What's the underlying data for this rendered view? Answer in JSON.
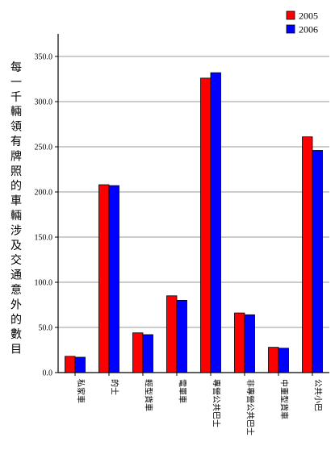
{
  "chart_data": {
    "type": "bar",
    "ylabel": "每一千輛領有牌照的車輛涉及交通意外的數目",
    "ylim": [
      0,
      375
    ],
    "yticks": [
      "0.0",
      "50.0",
      "100.0",
      "150.0",
      "200.0",
      "250.0",
      "300.0",
      "350.0"
    ],
    "categories": [
      "私家車",
      "的士",
      "輕型貨車",
      "電單車",
      "專營公共巴士",
      "非專營公共巴士",
      "中重型貨車",
      "公共小巴"
    ],
    "series": [
      {
        "name": "2005",
        "color": "#ff0000",
        "values": [
          18,
          208,
          44,
          85,
          326,
          66,
          28,
          261
        ]
      },
      {
        "name": "2006",
        "color": "#0000ff",
        "values": [
          17,
          207,
          42,
          80,
          332,
          64,
          27,
          246
        ]
      }
    ],
    "grid": true,
    "legend": "top-right"
  }
}
